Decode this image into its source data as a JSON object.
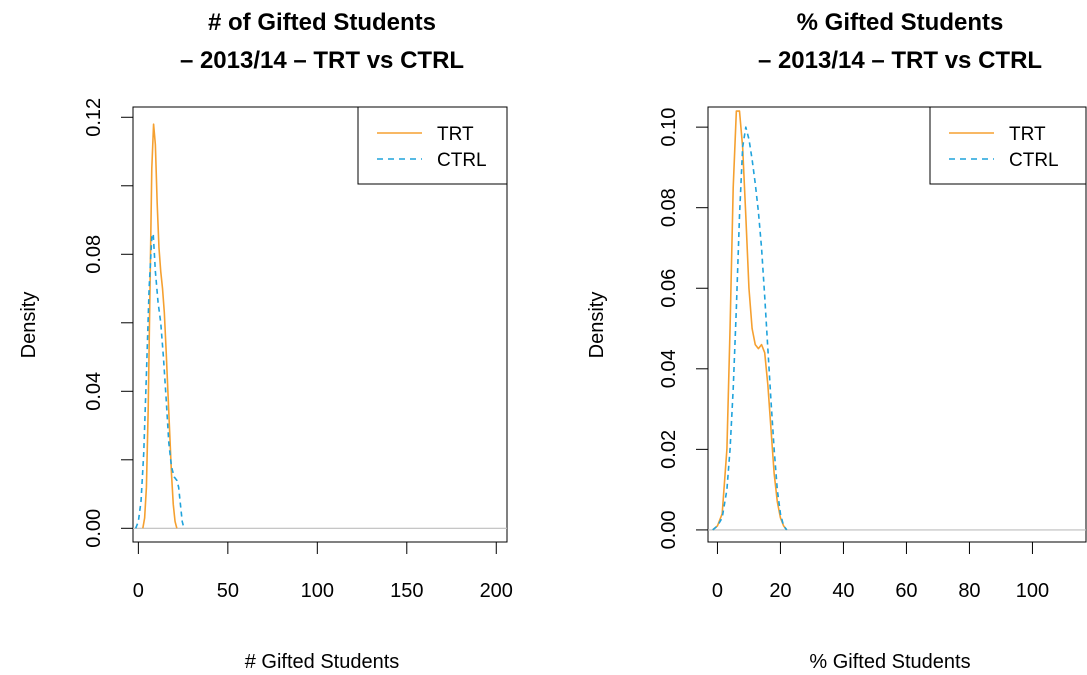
{
  "colors": {
    "trt": "#F5A030",
    "ctrl": "#1FA3DC",
    "baseline": "#BEBEBE",
    "axis": "#000000"
  },
  "chart_data": [
    {
      "type": "line",
      "title_lines": [
        "# of Gifted Students",
        "– 2013/14 – TRT vs CTRL"
      ],
      "xlabel": "# Gifted Students",
      "ylabel": "Density",
      "xlim": [
        -3,
        206
      ],
      "ylim": [
        -0.004,
        0.123
      ],
      "xticks": [
        0,
        50,
        100,
        150,
        200
      ],
      "xtick_labels": [
        "0",
        "50",
        "100",
        "150",
        "200"
      ],
      "yticks": [
        0,
        0.02,
        0.04,
        0.06,
        0.08,
        0.1,
        0.12
      ],
      "ytick_labels": [
        "0.00",
        "",
        "0.04",
        "",
        "0.08",
        "",
        "0.12"
      ],
      "legend": {
        "position": "top-right",
        "entries": [
          "TRT",
          "CTRL"
        ]
      },
      "series": [
        {
          "name": "TRT",
          "style": "solid",
          "x": [
            2.5,
            3.5,
            4.5,
            5.5,
            6.5,
            7.5,
            8.5,
            9.5,
            10.5,
            11.5,
            12.5,
            13.5,
            14.5,
            15.5,
            16.5,
            17.5,
            18.5,
            19.5,
            20.5,
            21.5
          ],
          "y": [
            0.0,
            0.003,
            0.012,
            0.035,
            0.07,
            0.105,
            0.118,
            0.112,
            0.095,
            0.082,
            0.075,
            0.07,
            0.063,
            0.052,
            0.04,
            0.028,
            0.016,
            0.007,
            0.002,
            0.0
          ]
        },
        {
          "name": "CTRL",
          "style": "dashed",
          "x": [
            -1.5,
            0,
            1.5,
            3,
            4.5,
            6,
            7.5,
            8.3,
            9.5,
            11,
            12.5,
            14,
            15.5,
            17,
            18.5,
            20,
            21.5,
            22.5,
            23.5,
            24.5,
            25.5
          ],
          "y": [
            0.0,
            0.002,
            0.008,
            0.022,
            0.045,
            0.07,
            0.085,
            0.086,
            0.075,
            0.066,
            0.06,
            0.05,
            0.038,
            0.025,
            0.018,
            0.015,
            0.014,
            0.012,
            0.007,
            0.002,
            0.0
          ]
        }
      ]
    },
    {
      "type": "line",
      "title_lines": [
        "% Gifted Students",
        "– 2013/14 – TRT vs CTRL"
      ],
      "xlabel": "% Gifted Students",
      "ylabel": "Density",
      "xlim": [
        -3,
        117
      ],
      "ylim": [
        -0.003,
        0.105
      ],
      "xticks": [
        0,
        20,
        40,
        60,
        80,
        100
      ],
      "xtick_labels": [
        "0",
        "20",
        "40",
        "60",
        "80",
        "100"
      ],
      "yticks": [
        0,
        0.02,
        0.04,
        0.06,
        0.08,
        0.1
      ],
      "ytick_labels": [
        "0.00",
        "0.02",
        "0.04",
        "0.06",
        "0.08",
        "0.10"
      ],
      "legend": {
        "position": "top-right",
        "entries": [
          "TRT",
          "CTRL"
        ]
      },
      "series": [
        {
          "name": "TRT",
          "style": "solid",
          "x": [
            -1.5,
            0,
            1.5,
            3,
            4,
            5,
            6,
            7,
            8,
            9,
            10,
            11,
            12,
            13,
            14,
            15,
            16,
            17,
            18,
            19,
            20,
            21,
            22
          ],
          "y": [
            0.0,
            0.001,
            0.004,
            0.02,
            0.05,
            0.085,
            0.104,
            0.104,
            0.095,
            0.078,
            0.06,
            0.05,
            0.046,
            0.045,
            0.046,
            0.044,
            0.036,
            0.025,
            0.014,
            0.007,
            0.003,
            0.001,
            0.0
          ]
        },
        {
          "name": "CTRL",
          "style": "dashed",
          "x": [
            -1.5,
            0,
            1.5,
            3,
            4,
            5,
            6,
            7,
            8,
            9,
            10,
            11,
            12,
            13,
            14,
            15,
            16,
            17,
            18,
            19,
            20,
            21,
            22
          ],
          "y": [
            0.0,
            0.001,
            0.003,
            0.01,
            0.02,
            0.035,
            0.055,
            0.078,
            0.095,
            0.1,
            0.097,
            0.092,
            0.086,
            0.079,
            0.07,
            0.058,
            0.045,
            0.032,
            0.02,
            0.01,
            0.004,
            0.001,
            0.0
          ]
        }
      ]
    }
  ]
}
